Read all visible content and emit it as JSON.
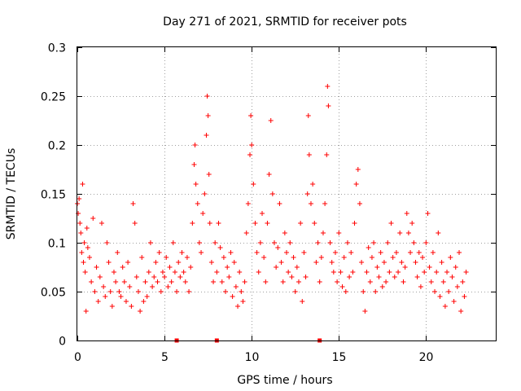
{
  "chart_data": {
    "type": "scatter",
    "title": "Day 271 of 2021, SRMTID for receiver pots",
    "xlabel": "GPS time / hours",
    "ylabel": "SRMTID / TECUs",
    "xlim": [
      0,
      24
    ],
    "ylim": [
      0,
      0.3
    ],
    "xticks": [
      0,
      5,
      10,
      15,
      20
    ],
    "yticks": [
      0,
      0.05,
      0.1,
      0.15,
      0.2,
      0.25,
      0.3
    ],
    "x_tick_labels": [
      "0",
      "5",
      "10",
      "15",
      "20"
    ],
    "y_tick_labels": [
      "0",
      "0.05",
      "0.1",
      "0.15",
      "0.2",
      "0.25",
      "0.3"
    ],
    "grid": true,
    "marker": "+",
    "color": "#ff0000",
    "x_range_of_points": [
      0,
      22.3
    ],
    "baseline_markers_x": [
      5.7,
      8.0,
      13.9
    ],
    "series": [
      {
        "name": "pots",
        "points": [
          [
            0.0,
            0.14
          ],
          [
            0.05,
            0.13
          ],
          [
            0.1,
            0.145
          ],
          [
            0.15,
            0.12
          ],
          [
            0.2,
            0.11
          ],
          [
            0.25,
            0.09
          ],
          [
            0.3,
            0.16
          ],
          [
            0.35,
            0.08
          ],
          [
            0.4,
            0.1
          ],
          [
            0.45,
            0.07
          ],
          [
            0.5,
            0.03
          ],
          [
            0.55,
            0.115
          ],
          [
            0.6,
            0.095
          ],
          [
            0.7,
            0.085
          ],
          [
            0.8,
            0.06
          ],
          [
            0.9,
            0.125
          ],
          [
            1.0,
            0.05
          ],
          [
            1.1,
            0.075
          ],
          [
            1.2,
            0.04
          ],
          [
            1.3,
            0.065
          ],
          [
            1.4,
            0.12
          ],
          [
            1.5,
            0.055
          ],
          [
            1.6,
            0.045
          ],
          [
            1.7,
            0.1
          ],
          [
            1.8,
            0.08
          ],
          [
            1.9,
            0.05
          ],
          [
            2.0,
            0.035
          ],
          [
            2.1,
            0.07
          ],
          [
            2.2,
            0.06
          ],
          [
            2.3,
            0.09
          ],
          [
            2.4,
            0.05
          ],
          [
            2.5,
            0.045
          ],
          [
            2.6,
            0.075
          ],
          [
            2.7,
            0.06
          ],
          [
            2.8,
            0.04
          ],
          [
            2.9,
            0.08
          ],
          [
            3.0,
            0.055
          ],
          [
            3.1,
            0.035
          ],
          [
            3.2,
            0.14
          ],
          [
            3.3,
            0.12
          ],
          [
            3.4,
            0.065
          ],
          [
            3.5,
            0.05
          ],
          [
            3.6,
            0.03
          ],
          [
            3.7,
            0.085
          ],
          [
            3.8,
            0.04
          ],
          [
            3.9,
            0.06
          ],
          [
            4.0,
            0.045
          ],
          [
            4.1,
            0.07
          ],
          [
            4.2,
            0.1
          ],
          [
            4.3,
            0.055
          ],
          [
            4.4,
            0.065
          ],
          [
            4.5,
            0.08
          ],
          [
            4.6,
            0.06
          ],
          [
            4.7,
            0.09
          ],
          [
            4.8,
            0.05
          ],
          [
            4.9,
            0.07
          ],
          [
            5.0,
            0.065
          ],
          [
            5.1,
            0.085
          ],
          [
            5.2,
            0.055
          ],
          [
            5.3,
            0.075
          ],
          [
            5.4,
            0.06
          ],
          [
            5.5,
            0.1
          ],
          [
            5.6,
            0.07
          ],
          [
            5.7,
            0.05
          ],
          [
            5.8,
            0.08
          ],
          [
            5.9,
            0.065
          ],
          [
            6.0,
            0.09
          ],
          [
            6.1,
            0.07
          ],
          [
            6.2,
            0.06
          ],
          [
            6.3,
            0.085
          ],
          [
            6.4,
            0.05
          ],
          [
            6.5,
            0.075
          ],
          [
            6.6,
            0.12
          ],
          [
            6.7,
            0.18
          ],
          [
            6.75,
            0.2
          ],
          [
            6.8,
            0.16
          ],
          [
            6.9,
            0.14
          ],
          [
            7.0,
            0.1
          ],
          [
            7.1,
            0.09
          ],
          [
            7.2,
            0.13
          ],
          [
            7.3,
            0.15
          ],
          [
            7.4,
            0.21
          ],
          [
            7.45,
            0.25
          ],
          [
            7.5,
            0.23
          ],
          [
            7.55,
            0.17
          ],
          [
            7.6,
            0.12
          ],
          [
            7.7,
            0.08
          ],
          [
            7.8,
            0.06
          ],
          [
            7.9,
            0.1
          ],
          [
            8.0,
            0.07
          ],
          [
            8.1,
            0.12
          ],
          [
            8.2,
            0.095
          ],
          [
            8.3,
            0.06
          ],
          [
            8.4,
            0.085
          ],
          [
            8.5,
            0.05
          ],
          [
            8.6,
            0.075
          ],
          [
            8.7,
            0.065
          ],
          [
            8.8,
            0.09
          ],
          [
            8.9,
            0.045
          ],
          [
            9.0,
            0.08
          ],
          [
            9.1,
            0.055
          ],
          [
            9.2,
            0.035
          ],
          [
            9.3,
            0.07
          ],
          [
            9.4,
            0.05
          ],
          [
            9.5,
            0.04
          ],
          [
            9.6,
            0.06
          ],
          [
            9.7,
            0.11
          ],
          [
            9.8,
            0.14
          ],
          [
            9.9,
            0.19
          ],
          [
            9.95,
            0.23
          ],
          [
            10.0,
            0.2
          ],
          [
            10.1,
            0.16
          ],
          [
            10.2,
            0.12
          ],
          [
            10.3,
            0.09
          ],
          [
            10.4,
            0.07
          ],
          [
            10.5,
            0.1
          ],
          [
            10.6,
            0.13
          ],
          [
            10.7,
            0.085
          ],
          [
            10.8,
            0.06
          ],
          [
            10.9,
            0.12
          ],
          [
            11.0,
            0.17
          ],
          [
            11.1,
            0.225
          ],
          [
            11.2,
            0.15
          ],
          [
            11.3,
            0.1
          ],
          [
            11.4,
            0.075
          ],
          [
            11.5,
            0.095
          ],
          [
            11.6,
            0.14
          ],
          [
            11.7,
            0.08
          ],
          [
            11.8,
            0.06
          ],
          [
            11.9,
            0.11
          ],
          [
            12.0,
            0.09
          ],
          [
            12.1,
            0.07
          ],
          [
            12.2,
            0.1
          ],
          [
            12.3,
            0.065
          ],
          [
            12.4,
            0.085
          ],
          [
            12.5,
            0.05
          ],
          [
            12.6,
            0.075
          ],
          [
            12.7,
            0.06
          ],
          [
            12.8,
            0.12
          ],
          [
            12.9,
            0.04
          ],
          [
            13.0,
            0.09
          ],
          [
            13.1,
            0.065
          ],
          [
            13.2,
            0.15
          ],
          [
            13.25,
            0.23
          ],
          [
            13.3,
            0.19
          ],
          [
            13.4,
            0.14
          ],
          [
            13.5,
            0.16
          ],
          [
            13.6,
            0.12
          ],
          [
            13.7,
            0.08
          ],
          [
            13.8,
            0.1
          ],
          [
            13.9,
            0.06
          ],
          [
            14.0,
            0.085
          ],
          [
            14.1,
            0.11
          ],
          [
            14.2,
            0.14
          ],
          [
            14.3,
            0.19
          ],
          [
            14.35,
            0.26
          ],
          [
            14.4,
            0.24
          ],
          [
            14.5,
            0.1
          ],
          [
            14.6,
            0.08
          ],
          [
            14.7,
            0.07
          ],
          [
            14.8,
            0.09
          ],
          [
            14.9,
            0.06
          ],
          [
            15.0,
            0.11
          ],
          [
            15.1,
            0.07
          ],
          [
            15.2,
            0.055
          ],
          [
            15.3,
            0.085
          ],
          [
            15.4,
            0.05
          ],
          [
            15.5,
            0.1
          ],
          [
            15.6,
            0.065
          ],
          [
            15.7,
            0.09
          ],
          [
            15.8,
            0.07
          ],
          [
            15.9,
            0.12
          ],
          [
            16.0,
            0.16
          ],
          [
            16.1,
            0.175
          ],
          [
            16.2,
            0.14
          ],
          [
            16.3,
            0.08
          ],
          [
            16.4,
            0.05
          ],
          [
            16.5,
            0.03
          ],
          [
            16.6,
            0.07
          ],
          [
            16.7,
            0.095
          ],
          [
            16.8,
            0.06
          ],
          [
            16.9,
            0.085
          ],
          [
            17.0,
            0.1
          ],
          [
            17.1,
            0.05
          ],
          [
            17.2,
            0.075
          ],
          [
            17.3,
            0.065
          ],
          [
            17.4,
            0.09
          ],
          [
            17.5,
            0.055
          ],
          [
            17.6,
            0.08
          ],
          [
            17.7,
            0.06
          ],
          [
            17.8,
            0.1
          ],
          [
            17.9,
            0.07
          ],
          [
            18.0,
            0.12
          ],
          [
            18.1,
            0.085
          ],
          [
            18.2,
            0.065
          ],
          [
            18.3,
            0.09
          ],
          [
            18.4,
            0.07
          ],
          [
            18.5,
            0.11
          ],
          [
            18.6,
            0.08
          ],
          [
            18.7,
            0.06
          ],
          [
            18.8,
            0.075
          ],
          [
            18.9,
            0.13
          ],
          [
            19.0,
            0.11
          ],
          [
            19.1,
            0.09
          ],
          [
            19.2,
            0.12
          ],
          [
            19.3,
            0.1
          ],
          [
            19.4,
            0.08
          ],
          [
            19.5,
            0.065
          ],
          [
            19.6,
            0.09
          ],
          [
            19.7,
            0.055
          ],
          [
            19.8,
            0.085
          ],
          [
            19.9,
            0.07
          ],
          [
            20.0,
            0.1
          ],
          [
            20.1,
            0.13
          ],
          [
            20.2,
            0.075
          ],
          [
            20.3,
            0.06
          ],
          [
            20.4,
            0.09
          ],
          [
            20.5,
            0.05
          ],
          [
            20.6,
            0.07
          ],
          [
            20.7,
            0.11
          ],
          [
            20.8,
            0.045
          ],
          [
            20.9,
            0.08
          ],
          [
            21.0,
            0.06
          ],
          [
            21.1,
            0.035
          ],
          [
            21.2,
            0.07
          ],
          [
            21.3,
            0.05
          ],
          [
            21.4,
            0.085
          ],
          [
            21.5,
            0.065
          ],
          [
            21.6,
            0.04
          ],
          [
            21.7,
            0.075
          ],
          [
            21.8,
            0.055
          ],
          [
            21.9,
            0.09
          ],
          [
            22.0,
            0.03
          ],
          [
            22.1,
            0.06
          ],
          [
            22.2,
            0.045
          ],
          [
            22.3,
            0.07
          ]
        ]
      }
    ]
  }
}
